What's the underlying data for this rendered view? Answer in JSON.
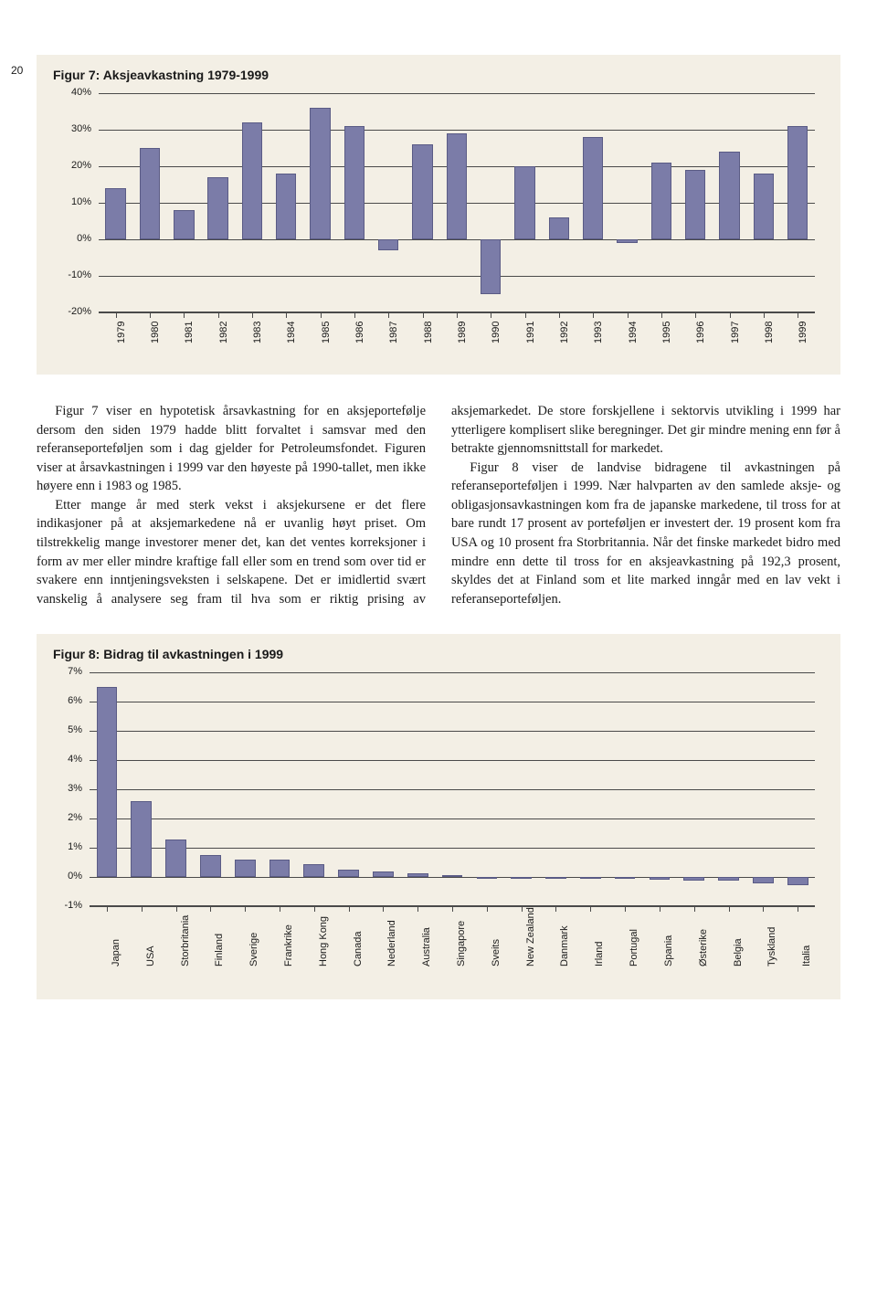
{
  "page_number": "20",
  "figure7": {
    "title": "Figur 7: Aksjeavkastning 1979-1999",
    "type": "bar",
    "categories": [
      "1979",
      "1980",
      "1981",
      "1982",
      "1983",
      "1984",
      "1985",
      "1986",
      "1987",
      "1988",
      "1989",
      "1990",
      "1991",
      "1992",
      "1993",
      "1994",
      "1995",
      "1996",
      "1997",
      "1998",
      "1999"
    ],
    "values": [
      14,
      25,
      8,
      17,
      32,
      18,
      36,
      31,
      -3,
      26,
      29,
      -15,
      20,
      6,
      28,
      -1,
      21,
      19,
      24,
      18,
      31
    ],
    "ylim": [
      -20,
      40
    ],
    "ytick_step": 10,
    "y_labels": [
      "40%",
      "30%",
      "20%",
      "10%",
      "0%",
      "-10%",
      "-20%"
    ],
    "bar_color": "#7b7ca8",
    "bar_border": "#5a5b85",
    "grid_color": "#4a4a4a",
    "background_color": "#f3efe5",
    "title_fontsize": 14,
    "label_fontsize": 11
  },
  "paragraph1": "Figur 7 viser en hypotetisk årsavkastning for en aksjeportefølje dersom den siden 1979 hadde blitt forvaltet i samsvar med den referanseporteføljen som i dag gjelder for Petroleumsfondet. Figuren viser at årsavkastningen i 1999 var den høyeste på 1990-tallet, men ikke høyere enn i 1983 og 1985.",
  "paragraph2": "Etter mange år med sterk vekst i aksjekursene er det flere indikasjoner på at aksjemarkedene nå er uvanlig høyt priset. Om tilstrekkelig mange investorer mener det, kan det ventes korreksjoner i form av mer eller mindre kraftige fall eller som en trend som over tid er svakere enn inntjeningsveksten i selskapene. Det er imidlertid svært vanskelig å analysere seg fram til hva som er riktig prising av aksjemarkedet. De store forskjellene i sektorvis utvikling i 1999 har ytterligere komplisert slike beregninger. Det gir mindre mening enn før å betrakte gjennomsnittstall for markedet.",
  "paragraph3": "Figur 8 viser de landvise bidragene til avkastningen på referanseporteføljen i 1999. Nær halvparten av den samlede aksje- og obligasjonsavkastningen kom fra de japanske markedene, til tross for at bare rundt 17 prosent av porteføljen er investert der. 19 prosent kom fra USA og 10 prosent fra Storbritannia. Når det finske markedet bidro med mindre enn dette til tross for en aksjeavkastning på 192,3 prosent, skyldes det at Finland som et lite marked inngår med en lav vekt i referanseporteføljen.",
  "figure8": {
    "title": "Figur 8: Bidrag til avkastningen i 1999",
    "type": "bar",
    "categories": [
      "Japan",
      "USA",
      "Storbritania",
      "Finland",
      "Sverige",
      "Frankrike",
      "Hong Kong",
      "Canada",
      "Nederland",
      "Australia",
      "Singapore",
      "Sveits",
      "New Zealand",
      "Danmark",
      "Irland",
      "Portugal",
      "Spania",
      "Østerike",
      "Belgia",
      "Tyskland",
      "Italia"
    ],
    "values": [
      6.5,
      2.6,
      1.3,
      0.75,
      0.6,
      0.6,
      0.45,
      0.25,
      0.2,
      0.15,
      0.08,
      0.02,
      -0.02,
      -0.04,
      -0.05,
      -0.06,
      -0.08,
      -0.1,
      -0.12,
      -0.2,
      -0.28
    ],
    "ylim": [
      -1,
      7
    ],
    "ytick_step": 1,
    "y_labels": [
      "7%",
      "6%",
      "5%",
      "4%",
      "3%",
      "2%",
      "1%",
      "0%",
      "-1%"
    ],
    "bar_color": "#7b7ca8",
    "bar_border": "#5a5b85",
    "grid_color": "#4a4a4a",
    "background_color": "#f3efe5",
    "title_fontsize": 14,
    "label_fontsize": 11
  }
}
